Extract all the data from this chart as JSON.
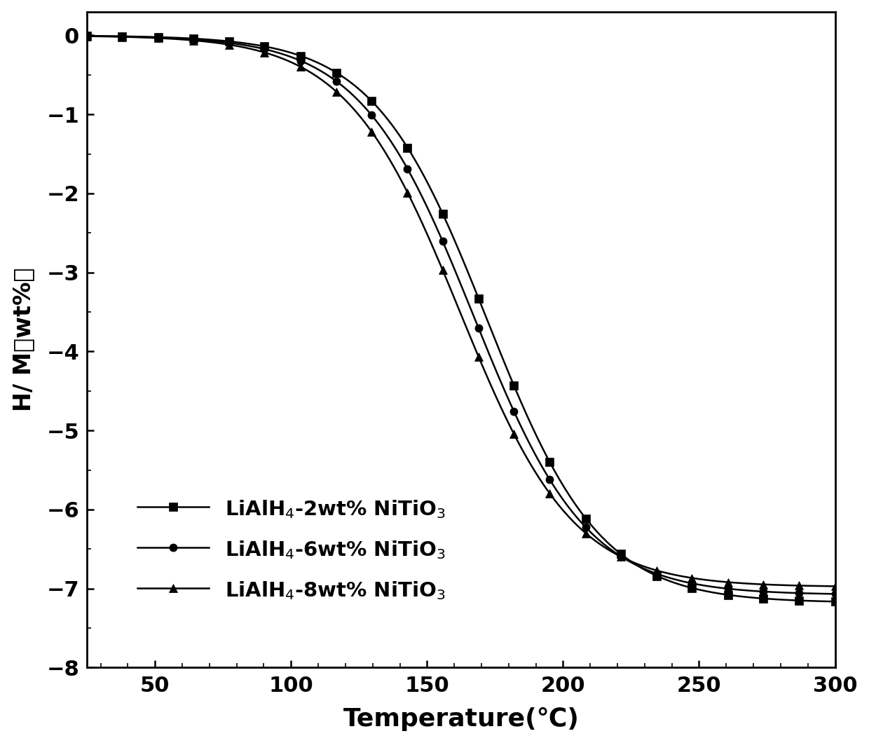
{
  "xlabel": "Temperature(℃)",
  "ylabel": "H/ M（wt%）",
  "xlim": [
    25,
    300
  ],
  "ylim": [
    -8,
    0.3
  ],
  "xticks": [
    50,
    100,
    150,
    200,
    250,
    300
  ],
  "yticks": [
    0,
    -1,
    -2,
    -3,
    -4,
    -5,
    -6,
    -7,
    -8
  ],
  "background_color": "#ffffff",
  "curve_params": [
    {
      "label": "LiAlH$_4$-2wt% NiTiO$_3$",
      "marker": "s",
      "inflection": 172,
      "final_value": -7.18,
      "sharpness": 0.048
    },
    {
      "label": "LiAlH$_4$-6wt% NiTiO$_3$",
      "marker": "o",
      "inflection": 167,
      "final_value": -7.08,
      "sharpness": 0.048
    },
    {
      "label": "LiAlH$_4$-8wt% NiTiO$_3$",
      "marker": "^",
      "inflection": 162,
      "final_value": -6.98,
      "sharpness": 0.048
    }
  ]
}
